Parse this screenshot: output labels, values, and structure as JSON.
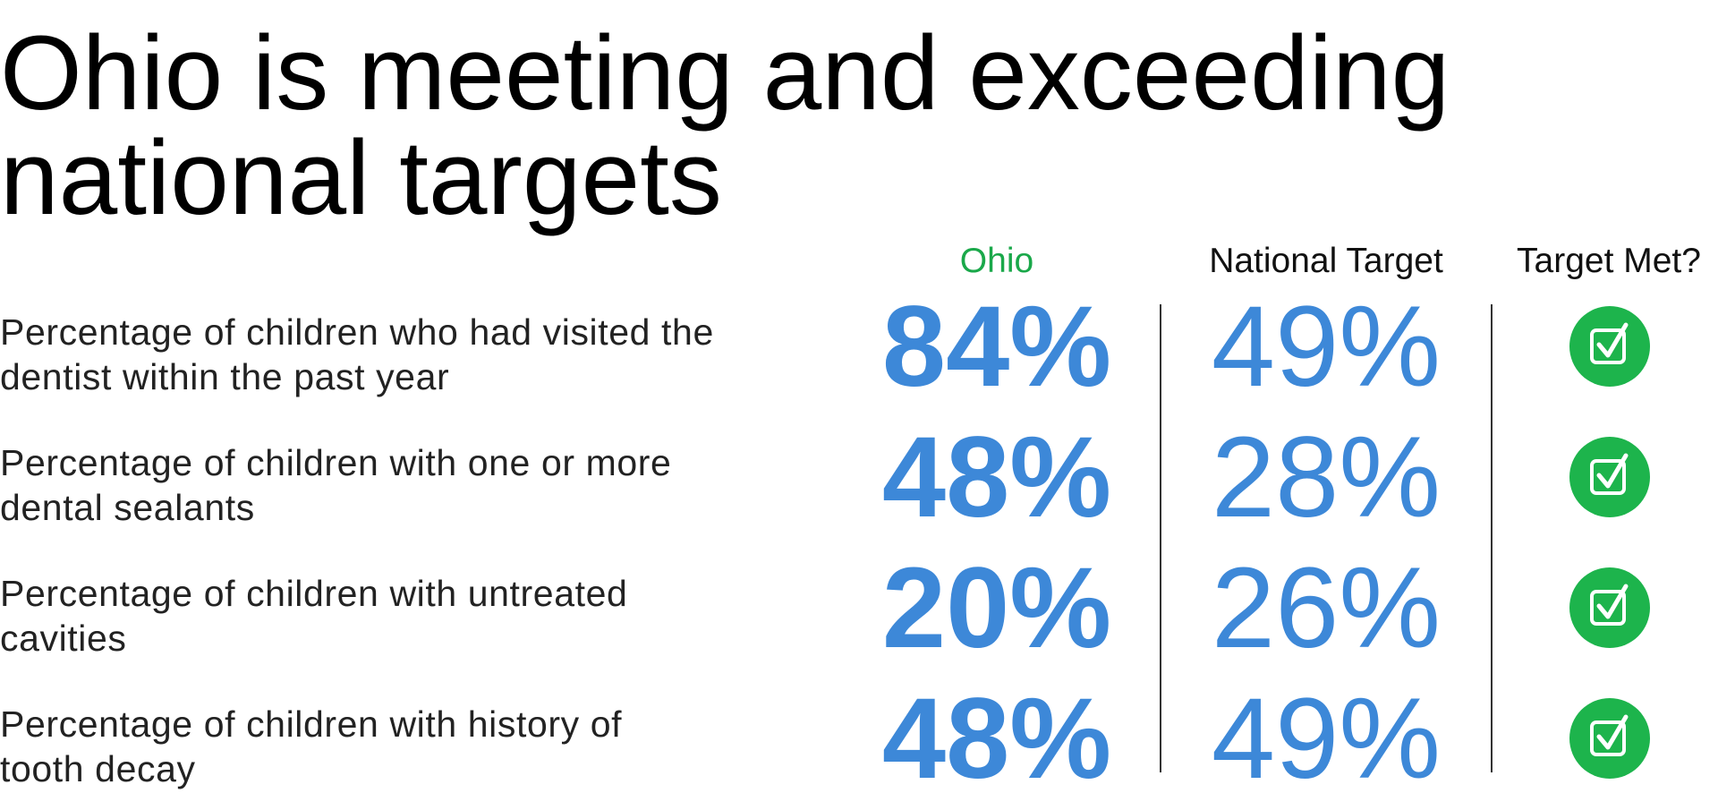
{
  "header": {
    "title": [
      "Ohio is meeting and exceeding",
      "national targets"
    ]
  },
  "table": {
    "columns": [
      "Ohio",
      "National Target",
      "Target Met?"
    ],
    "rows": [
      {
        "label": [
          "Percentage of children who had visited the",
          "dentist within the past year"
        ],
        "ohio": "84%",
        "national": "49%"
      },
      {
        "label": [
          "Percentage of children with one or more",
          "dental sealants"
        ],
        "ohio": "48%",
        "national": "28%"
      },
      {
        "label": [
          "Percentage of children with untreated",
          "cavities"
        ],
        "ohio": "20%",
        "national": "26%"
      },
      {
        "label": [
          "Percentage of children with history of",
          "tooth decay"
        ],
        "ohio": "48%",
        "national": "49%"
      }
    ]
  }
}
